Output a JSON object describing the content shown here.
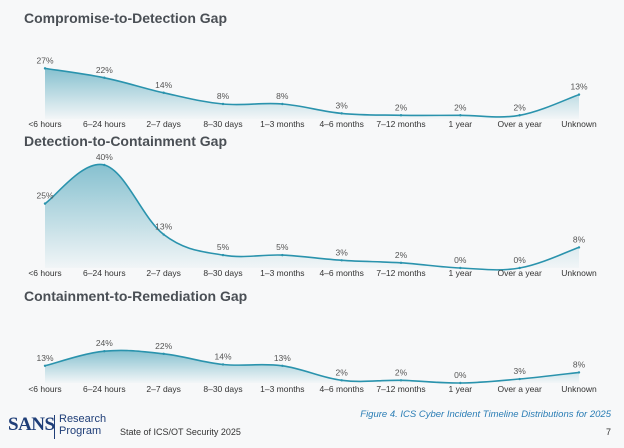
{
  "chart_data": [
    {
      "type": "area",
      "title": "Compromise-to-Detection Gap",
      "categories": [
        "<6 hours",
        "6–24 hours",
        "2–7 days",
        "8–30 days",
        "1–3 months",
        "4–6 months",
        "7–12 months",
        "1 year",
        "Over a year",
        "Unknown"
      ],
      "values": [
        27,
        22,
        14,
        8,
        8,
        3,
        2,
        2,
        2,
        13
      ],
      "value_labels": [
        "27%",
        "22%",
        "14%",
        "8%",
        "8%",
        "3%",
        "2%",
        "2%",
        "2%",
        "13%"
      ],
      "ylim": [
        0,
        40
      ],
      "grid": false,
      "legend": "none"
    },
    {
      "type": "area",
      "title": "Detection-to-Containment Gap",
      "categories": [
        "<6 hours",
        "6–24 hours",
        "2–7 days",
        "8–30 days",
        "1–3 months",
        "4–6 months",
        "7–12 months",
        "1 year",
        "Over a year",
        "Unknown"
      ],
      "values": [
        25,
        40,
        13,
        5,
        5,
        3,
        2,
        0,
        0,
        8
      ],
      "value_labels": [
        "25%",
        "40%",
        "13%",
        "5%",
        "5%",
        "3%",
        "2%",
        "0%",
        "0%",
        "8%"
      ],
      "ylim": [
        0,
        40
      ],
      "grid": false,
      "legend": "none"
    },
    {
      "type": "area",
      "title": "Containment-to-Remediation Gap",
      "categories": [
        "<6 hours",
        "6–24 hours",
        "2–7 days",
        "8–30 days",
        "1–3 months",
        "4–6 months",
        "7–12 months",
        "1 year",
        "Over a year",
        "Unknown"
      ],
      "values": [
        13,
        24,
        22,
        14,
        13,
        2,
        2,
        0,
        3,
        8
      ],
      "value_labels": [
        "13%",
        "24%",
        "22%",
        "14%",
        "13%",
        "2%",
        "2%",
        "0%",
        "3%",
        "8%"
      ],
      "ylim": [
        0,
        40
      ],
      "grid": false,
      "legend": "none"
    }
  ],
  "colors": {
    "line": "#2a93ad",
    "fill_top": "#2a93ad",
    "title": "#4a4f55",
    "label": "#555555",
    "brand": "#1f3e78",
    "caption": "#2a7db5"
  },
  "footer": {
    "logo": "SANS",
    "program_line1": "Research",
    "program_line2": "Program",
    "report": "State of ICS/OT Security 2025",
    "caption": "Figure 4. ICS Cyber Incident Timeline Distributions for 2025",
    "page_number": "7"
  }
}
